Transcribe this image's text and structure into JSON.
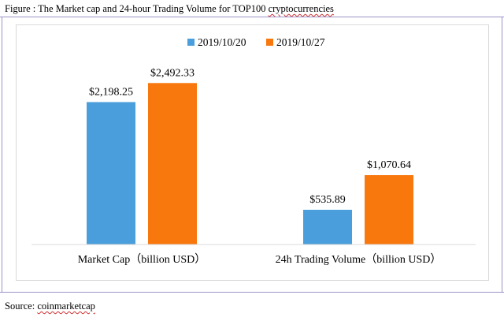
{
  "figure_caption": {
    "prefix": "Figure : The Market cap and 24-hour Trading Volume for TOP100 ",
    "underlined": "cryptocurrencies"
  },
  "source_caption": {
    "prefix": "Source: ",
    "underlined": "coinmarketcap"
  },
  "colors": {
    "series_1": "#4a9edb",
    "series_2": "#f8780e",
    "baseline": "#d9d9d9"
  },
  "chart_data": {
    "type": "bar",
    "categories": [
      "Market Cap（billion USD）",
      "24h Trading Volume（billion USD）"
    ],
    "series": [
      {
        "name": "2019/10/20",
        "values": [
          2198.25,
          535.89
        ],
        "labels": [
          "$2,198.25",
          "$535.89"
        ]
      },
      {
        "name": "2019/10/27",
        "values": [
          2492.33,
          1070.64
        ],
        "labels": [
          "$2,492.33",
          "$1,070.64"
        ]
      }
    ],
    "ylim": [
      0,
      2800
    ],
    "grid": false,
    "legend_position": "top-center"
  }
}
